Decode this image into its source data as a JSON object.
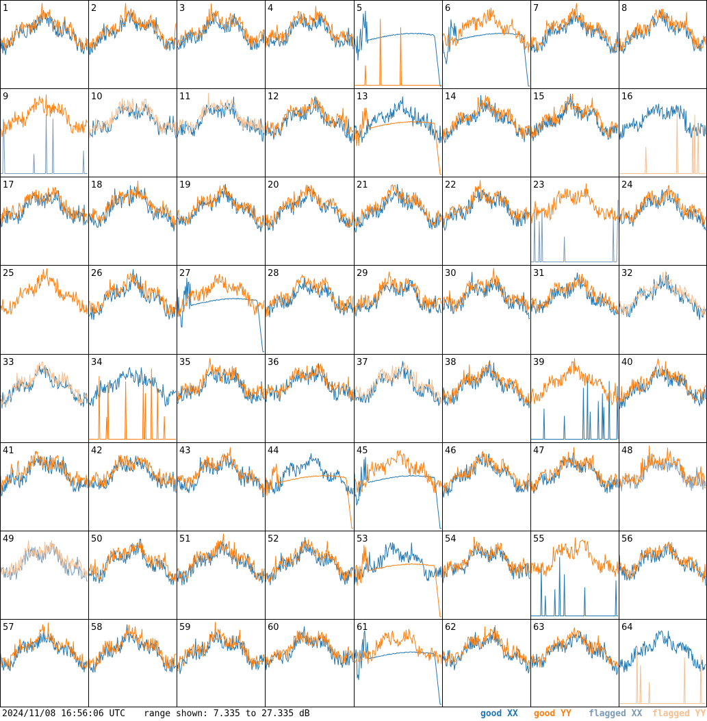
{
  "chart_data": {
    "type": "line",
    "title": "",
    "layout": "8x8 small-multiples grid, one panel per tile",
    "tile_labels": [
      "1",
      "2",
      "3",
      "4",
      "5",
      "6",
      "7",
      "8",
      "9",
      "10",
      "11",
      "12",
      "13",
      "14",
      "15",
      "16",
      "17",
      "18",
      "19",
      "20",
      "21",
      "22",
      "23",
      "24",
      "25",
      "26",
      "27",
      "28",
      "29",
      "30",
      "31",
      "32",
      "33",
      "34",
      "35",
      "36",
      "37",
      "38",
      "39",
      "40",
      "41",
      "42",
      "43",
      "44",
      "45",
      "46",
      "47",
      "48",
      "49",
      "50",
      "51",
      "52",
      "53",
      "54",
      "55",
      "56",
      "57",
      "58",
      "59",
      "60",
      "61",
      "62",
      "63",
      "64"
    ],
    "ylim": [
      7.335,
      27.335
    ],
    "yunit": "dB",
    "series_styles": [
      {
        "name": "good XX",
        "color": "#1f77b4"
      },
      {
        "name": "good YY",
        "color": "#ff7f0e"
      },
      {
        "name": "flagged XX",
        "color": "#7b9bb8"
      },
      {
        "name": "flagged YY",
        "color": "#f6bf90"
      }
    ],
    "tile_states": {
      "xx_flagged": [
        "9",
        "23",
        "48",
        "49"
      ],
      "yy_flagged": [
        "10",
        "11",
        "16",
        "32",
        "33",
        "37",
        "49",
        "64"
      ],
      "xx_sparse_spikes": [
        "39",
        "55",
        "9",
        "23"
      ],
      "yy_sparse_spikes": [
        "5",
        "16",
        "34",
        "64"
      ],
      "xx_rolloff": [
        "5",
        "6",
        "27",
        "45",
        "61"
      ],
      "yy_rolloff": [
        "13",
        "44",
        "53"
      ],
      "xx_missing": [
        "25"
      ]
    }
  },
  "footer": {
    "timestamp": "2024/11/08 16:56:06 UTC",
    "range_text": "range shown: 7.335 to 27.335 dB",
    "legend": {
      "good_xx": "good XX",
      "good_yy": "good YY",
      "flagged_xx": "flagged XX",
      "flagged_yy": "flagged YY"
    }
  }
}
